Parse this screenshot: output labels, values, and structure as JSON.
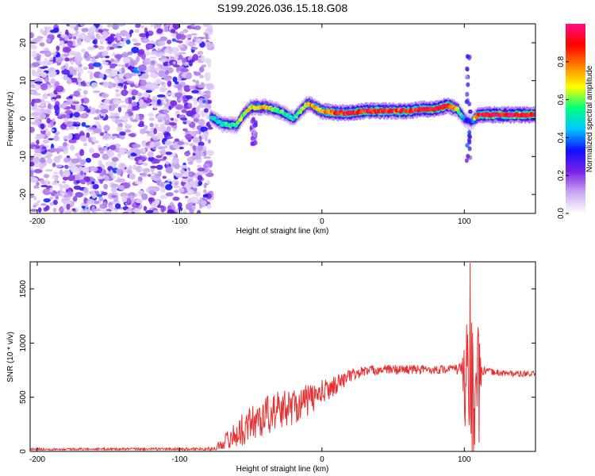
{
  "title": "S199.2026.036.15.18.G08",
  "chart_data": [
    {
      "type": "heatmap",
      "name": "spectrogram",
      "xlabel": "Height of straight line (km)",
      "ylabel": "Frequency (Hz)",
      "xlim": [
        -205,
        150
      ],
      "ylim": [
        -25,
        25
      ],
      "xticks": [
        -200,
        -100,
        0,
        100
      ],
      "xtick_labels": [
        "-200",
        "-100",
        "0",
        "100"
      ],
      "yticks": [
        -20,
        -10,
        0,
        10,
        20
      ],
      "ytick_labels": [
        "-20",
        "-10",
        "0",
        "10",
        "20"
      ],
      "colorbar": {
        "label": "Normalized spectral amplitude",
        "range": [
          0,
          1
        ],
        "ticks": [
          0.0,
          0.2,
          0.4,
          0.6,
          0.8
        ],
        "tick_labels": [
          "0.0",
          "0.2",
          "0.4",
          "0.6",
          "0.8"
        ],
        "colors": [
          "#ffffff",
          "#c8a8f0",
          "#7a20e8",
          "#1010ff",
          "#00c8ff",
          "#00ff80",
          "#ffff00",
          "#ff8000",
          "#ff0000",
          "#ff1080"
        ]
      },
      "noise_region": {
        "x": [
          -205,
          -78
        ],
        "amplitude": [
          0.05,
          0.3
        ]
      },
      "ridge": {
        "x": [
          -78,
          -70,
          -60,
          -55,
          -50,
          -40,
          -30,
          -20,
          -15,
          -10,
          -5,
          0,
          10,
          20,
          30,
          40,
          50,
          60,
          70,
          80,
          88,
          95,
          100,
          105,
          110,
          120,
          130,
          140,
          150
        ],
        "frequency": [
          0.5,
          -1.5,
          -1.8,
          1,
          3,
          3,
          2,
          0,
          2,
          4,
          3,
          2,
          1.5,
          1.5,
          2,
          2,
          2,
          2,
          2.5,
          2.5,
          3.5,
          2.5,
          0,
          -1,
          1,
          1,
          1,
          1,
          1
        ],
        "amplitude": [
          0.45,
          0.5,
          0.55,
          0.6,
          0.7,
          0.7,
          0.55,
          0.5,
          0.6,
          0.7,
          0.75,
          0.8,
          0.85,
          0.9,
          0.9,
          0.9,
          0.85,
          0.9,
          0.9,
          0.95,
          0.95,
          0.7,
          0.4,
          0.3,
          0.9,
          0.95,
          0.95,
          1.0,
          0.95
        ]
      },
      "spikes": [
        {
          "x": 103,
          "f_range": [
            -12,
            19
          ],
          "amplitude": 0.3
        },
        {
          "x": -48,
          "f_range": [
            -7,
            0
          ],
          "amplitude": 0.2
        }
      ]
    },
    {
      "type": "line",
      "name": "snr",
      "xlabel": "Height of straight line (km)",
      "ylabel": "SNR (10 * v/v)",
      "xlim": [
        -205,
        150
      ],
      "ylim": [
        0,
        1750
      ],
      "xticks": [
        -200,
        -100,
        0,
        100
      ],
      "xtick_labels": [
        "-200",
        "-100",
        "0",
        "100"
      ],
      "yticks": [
        0,
        500,
        1000,
        1500
      ],
      "ytick_labels": [
        "0",
        "500",
        "1000",
        "1500"
      ],
      "color": "#e83030",
      "envelope": {
        "x": [
          -205,
          -150,
          -100,
          -75,
          -70,
          -60,
          -50,
          -40,
          -30,
          -20,
          -10,
          0,
          10,
          20,
          30,
          40,
          60,
          80,
          90,
          98,
          100,
          103,
          105,
          108,
          110,
          112,
          115,
          130,
          150
        ],
        "mean": [
          20,
          22,
          22,
          25,
          80,
          160,
          260,
          330,
          380,
          420,
          470,
          540,
          620,
          700,
          740,
          755,
          755,
          755,
          760,
          760,
          700,
          600,
          550,
          520,
          500,
          740,
          740,
          720,
          710
        ],
        "variation": [
          10,
          10,
          12,
          15,
          60,
          130,
          170,
          190,
          180,
          170,
          150,
          120,
          90,
          60,
          50,
          45,
          45,
          40,
          40,
          60,
          400,
          850,
          700,
          700,
          650,
          60,
          30,
          30,
          30
        ]
      },
      "peak": {
        "x": 104,
        "y": 1740
      }
    }
  ]
}
